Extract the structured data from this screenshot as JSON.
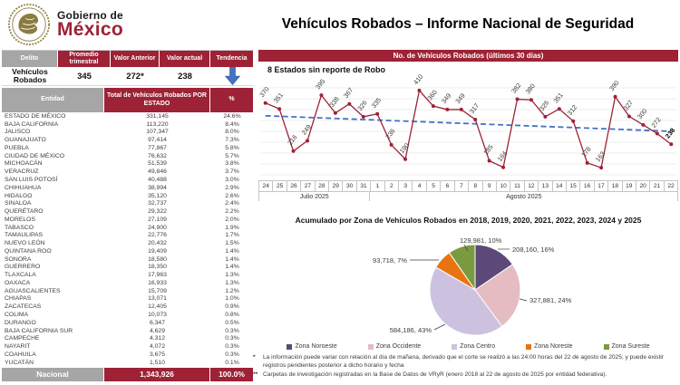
{
  "logo": {
    "line1": "Gobierno de",
    "line2": "México"
  },
  "title": "Vehículos Robados – Informe Nacional de Seguridad",
  "colors": {
    "burgundy": "#9D2235",
    "header_gray": "#A6A6A6",
    "trend_blue": "#4472C4"
  },
  "summary_table": {
    "headers": [
      "Delito",
      "Promedio trimestral",
      "Valor Anterior",
      "Valor actual",
      "Tendencia"
    ],
    "row": {
      "delito": "Vehículos Robados",
      "promedio": "345",
      "anterior": "272*",
      "actual": "238",
      "tendencia_icon": "arrow-down"
    }
  },
  "state_table": {
    "headers": {
      "entidad": "Entidad",
      "total": "Total de Vehículos Robados POR ESTADO",
      "pct": "%"
    },
    "rows": [
      [
        "ESTADO DE MÉXICO",
        "331,145",
        "24.6%"
      ],
      [
        "BAJA CALIFORNIA",
        "113,220",
        "8.4%"
      ],
      [
        "JALISCO",
        "107,347",
        "8.0%"
      ],
      [
        "GUANAJUATO",
        "97,414",
        "7.3%"
      ],
      [
        "PUEBLA",
        "77,867",
        "5.8%"
      ],
      [
        "CIUDAD DE MÉXICO",
        "76,632",
        "5.7%"
      ],
      [
        "MICHOACÁN",
        "51,539",
        "3.8%"
      ],
      [
        "VERACRUZ",
        "49,846",
        "3.7%"
      ],
      [
        "SAN LUIS POTOSÍ",
        "40,488",
        "3.0%"
      ],
      [
        "CHIHUAHUA",
        "38,994",
        "2.9%"
      ],
      [
        "HIDALGO",
        "35,120",
        "2.6%"
      ],
      [
        "SINALOA",
        "32,737",
        "2.4%"
      ],
      [
        "QUERÉTARO",
        "29,322",
        "2.2%"
      ],
      [
        "MORELOS",
        "27,109",
        "2.0%"
      ],
      [
        "TABASCO",
        "24,900",
        "1.9%"
      ],
      [
        "TAMAULIPAS",
        "22,776",
        "1.7%"
      ],
      [
        "NUEVO LEÓN",
        "20,432",
        "1.5%"
      ],
      [
        "QUINTANA ROO",
        "19,409",
        "1.4%"
      ],
      [
        "SONORA",
        "18,580",
        "1.4%"
      ],
      [
        "GUERRERO",
        "18,350",
        "1.4%"
      ],
      [
        "TLAXCALA",
        "17,963",
        "1.3%"
      ],
      [
        "OAXACA",
        "16,933",
        "1.3%"
      ],
      [
        "AGUASCALIENTES",
        "15,709",
        "1.2%"
      ],
      [
        "CHIAPAS",
        "13,071",
        "1.0%"
      ],
      [
        "ZACATECAS",
        "12,405",
        "0.9%"
      ],
      [
        "COLIMA",
        "10,073",
        "0.8%"
      ],
      [
        "DURANGO",
        "6,347",
        "0.5%"
      ],
      [
        "BAJA CALIFORNIA SUR",
        "4,629",
        "0.3%"
      ],
      [
        "CAMPECHE",
        "4,312",
        "0.3%"
      ],
      [
        "NAYARIT",
        "4,072",
        "0.3%"
      ],
      [
        "COAHUILA",
        "3,675",
        "0.3%"
      ],
      [
        "YUCATÁN",
        "1,510",
        "0.1%"
      ]
    ],
    "footer": {
      "label": "Nacional",
      "total": "1,343,926",
      "pct": "100.0%"
    }
  },
  "chart_data": [
    {
      "type": "line",
      "title": "No. de Vehículos Robados (últimos 30 días)",
      "subtitle": "8 Estados sin reporte de Robo",
      "x": [
        "24",
        "25",
        "26",
        "27",
        "28",
        "29",
        "30",
        "31",
        "1",
        "2",
        "3",
        "4",
        "5",
        "6",
        "7",
        "8",
        "9",
        "10",
        "11",
        "12",
        "13",
        "14",
        "15",
        "16",
        "17",
        "18",
        "19",
        "20",
        "21",
        "22"
      ],
      "x_groups": [
        {
          "label": "Julio 2025",
          "span": 8
        },
        {
          "label": "Agosto 2025",
          "span": 22
        }
      ],
      "values": [
        370,
        351,
        216,
        249,
        395,
        338,
        367,
        326,
        335,
        236,
        190,
        410,
        360,
        349,
        349,
        317,
        185,
        164,
        382,
        380,
        326,
        351,
        312,
        178,
        163,
        390,
        327,
        300,
        272,
        238
      ],
      "ylim": [
        140,
        430
      ],
      "grid": true,
      "trendline": "linear",
      "line_color": "#9D2235",
      "trend_color": "#4472C4",
      "xlabel": "",
      "ylabel": ""
    },
    {
      "type": "pie",
      "title": "Acumulado por Zona de Vehículos Robados en 2018, 2019, 2020, 2021, 2022, 2023, 2024 y 2025",
      "legend_position": "bottom",
      "slices": [
        {
          "label": "Zona Noroeste",
          "value": 208160,
          "pct": "16%",
          "label_display": "208,160, 16%",
          "color": "#5D4979"
        },
        {
          "label": "Zona Occidente",
          "value": 327881,
          "pct": "24%",
          "label_display": "327,881, 24%",
          "color": "#E4BCC2"
        },
        {
          "label": "Zona Centro",
          "value": 584186,
          "pct": "43%",
          "label_display": "584,186, 43%",
          "color": "#CCC2E0"
        },
        {
          "label": "Zona Noreste",
          "value": 93718,
          "pct": "7%",
          "label_display": "93,718, 7%",
          "color": "#E8740F"
        },
        {
          "label": "Zona Sureste",
          "value": 129981,
          "pct": "10%",
          "label_display": "129,981, 10%",
          "color": "#7A9A3F"
        }
      ]
    }
  ],
  "footnotes": [
    {
      "mark": "*",
      "text": "La información puede variar con relación al día de mañana, derivado que el corte se realizó a las 24:00 horas del 22 de agosto de 2025; y puede existir registros pendientes posterior a dicho horario y fecha"
    },
    {
      "mark": "**",
      "text": "Carpetas de investigación registradas en la Base de Datos de VRyR (enero 2018 al 22 de agosto de 2025 por entidad federativa)."
    }
  ]
}
